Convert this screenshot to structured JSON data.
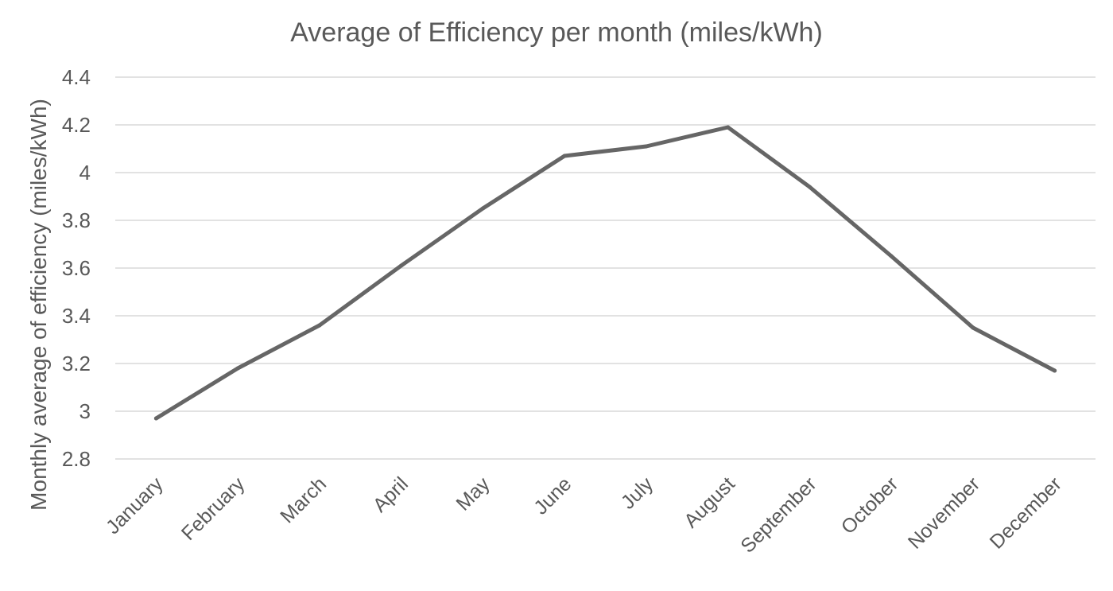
{
  "chart_data": {
    "type": "line",
    "title": "Average of Efficiency per month (miles/kWh)",
    "xlabel": "",
    "ylabel": "Monthly average of efficiency (miles/kWh)",
    "categories": [
      "January",
      "February",
      "March",
      "April",
      "May",
      "June",
      "July",
      "August",
      "September",
      "October",
      "November",
      "December"
    ],
    "series": [
      {
        "values": [
          2.97,
          3.18,
          3.36,
          3.61,
          3.85,
          4.07,
          4.11,
          4.19,
          3.94,
          3.65,
          3.35,
          3.17
        ],
        "color": "#666666"
      }
    ],
    "ylim": [
      2.8,
      4.4
    ],
    "yticks": [
      "2.8",
      "3",
      "3.2",
      "3.4",
      "3.6",
      "3.8",
      "4",
      "4.2",
      "4.4"
    ],
    "grid": true,
    "legend": "none"
  }
}
